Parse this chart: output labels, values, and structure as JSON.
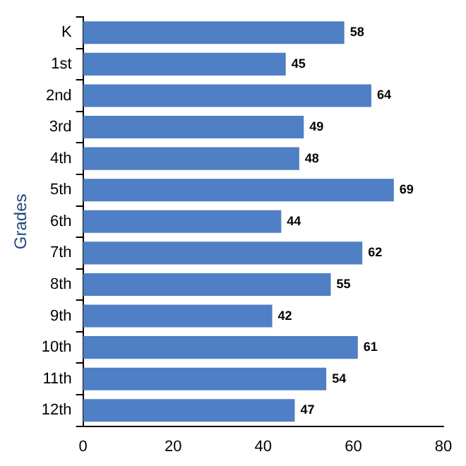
{
  "chart_data": {
    "type": "bar",
    "orientation": "horizontal",
    "ylabel": "Grades",
    "categories": [
      "K",
      "1st",
      "2nd",
      "3rd",
      "4th",
      "5th",
      "6th",
      "7th",
      "8th",
      "9th",
      "10th",
      "11th",
      "12th"
    ],
    "values": [
      58,
      45,
      64,
      49,
      48,
      69,
      44,
      62,
      55,
      42,
      61,
      54,
      47
    ],
    "color": "#4f7fc4",
    "xlim": [
      0,
      80
    ],
    "xticks": [
      0,
      20,
      40,
      60,
      80
    ],
    "grid": false,
    "legend": false,
    "data_labels": true
  }
}
